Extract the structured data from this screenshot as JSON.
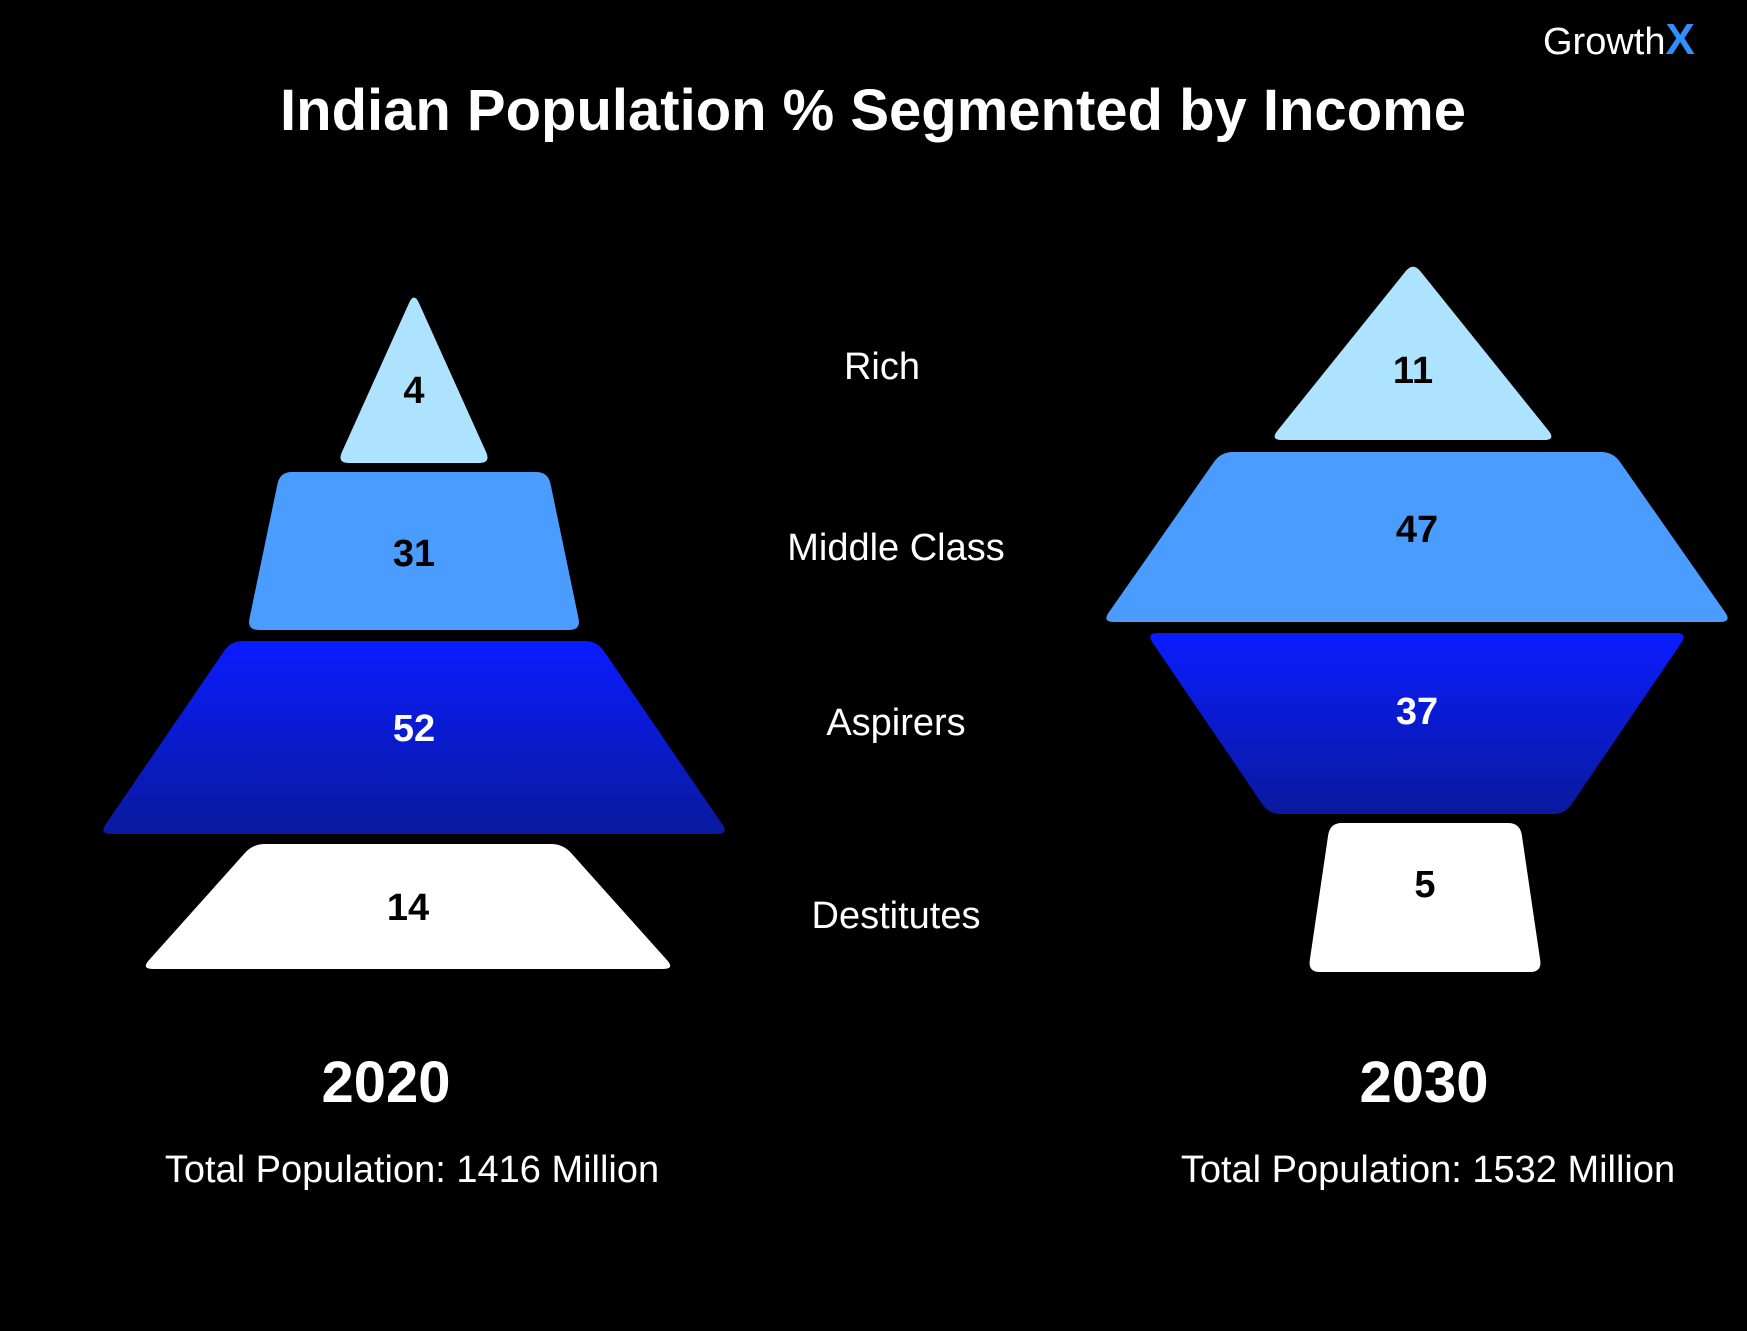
{
  "brand": {
    "name": "Growth",
    "suffix": "X",
    "accent": "#2f8fff"
  },
  "chart_data": {
    "type": "pyramid",
    "title": "Indian Population % Segmented by Income",
    "categories": [
      "Rich",
      "Middle Class",
      "Aspirers",
      "Destitutes"
    ],
    "colors": {
      "Rich": "#aee3ff",
      "Middle Class": "#4b9cff",
      "Aspirers_top": "#0a1cff",
      "Aspirers_bottom": "#0a1a9e",
      "Destitutes": "#ffffff"
    },
    "series": [
      {
        "name": "2020",
        "values": [
          4,
          31,
          52,
          14
        ],
        "total_label": "Total Population: 1416 Million"
      },
      {
        "name": "2030",
        "values": [
          11,
          47,
          37,
          5
        ],
        "total_label": "Total Population: 1532 Million"
      }
    ]
  }
}
